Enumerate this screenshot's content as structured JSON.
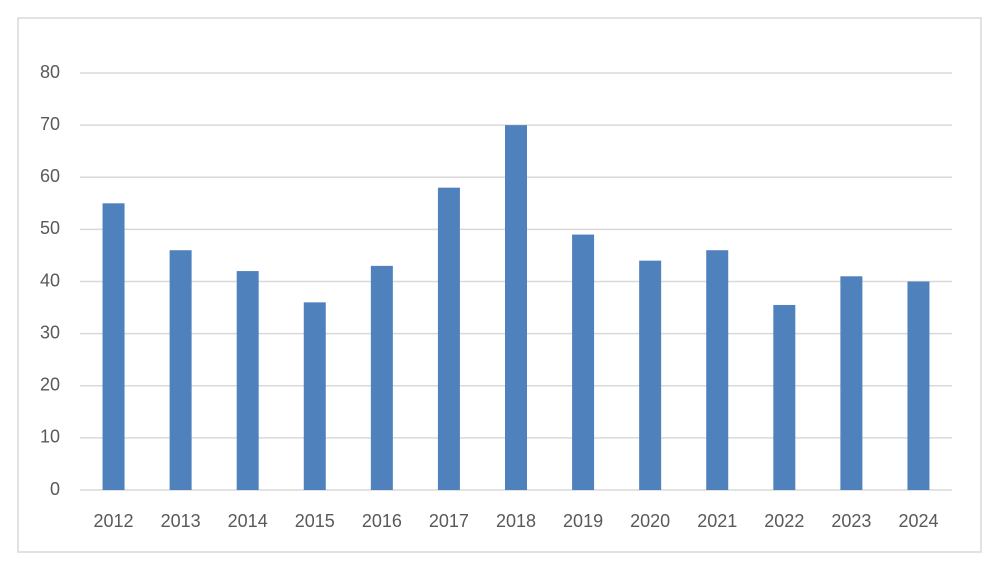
{
  "chart_data": {
    "type": "bar",
    "categories": [
      "2012",
      "2013",
      "2014",
      "2015",
      "2016",
      "2017",
      "2018",
      "2019",
      "2020",
      "2021",
      "2022",
      "2023",
      "2024"
    ],
    "values": [
      55,
      46,
      42,
      36,
      43,
      58,
      70,
      49,
      44,
      46,
      35.5,
      41,
      40
    ],
    "color": "#4f81bd",
    "ylim": [
      0,
      80
    ],
    "yticks": [
      0,
      10,
      20,
      30,
      40,
      50,
      60,
      70,
      80
    ],
    "grid": true
  }
}
